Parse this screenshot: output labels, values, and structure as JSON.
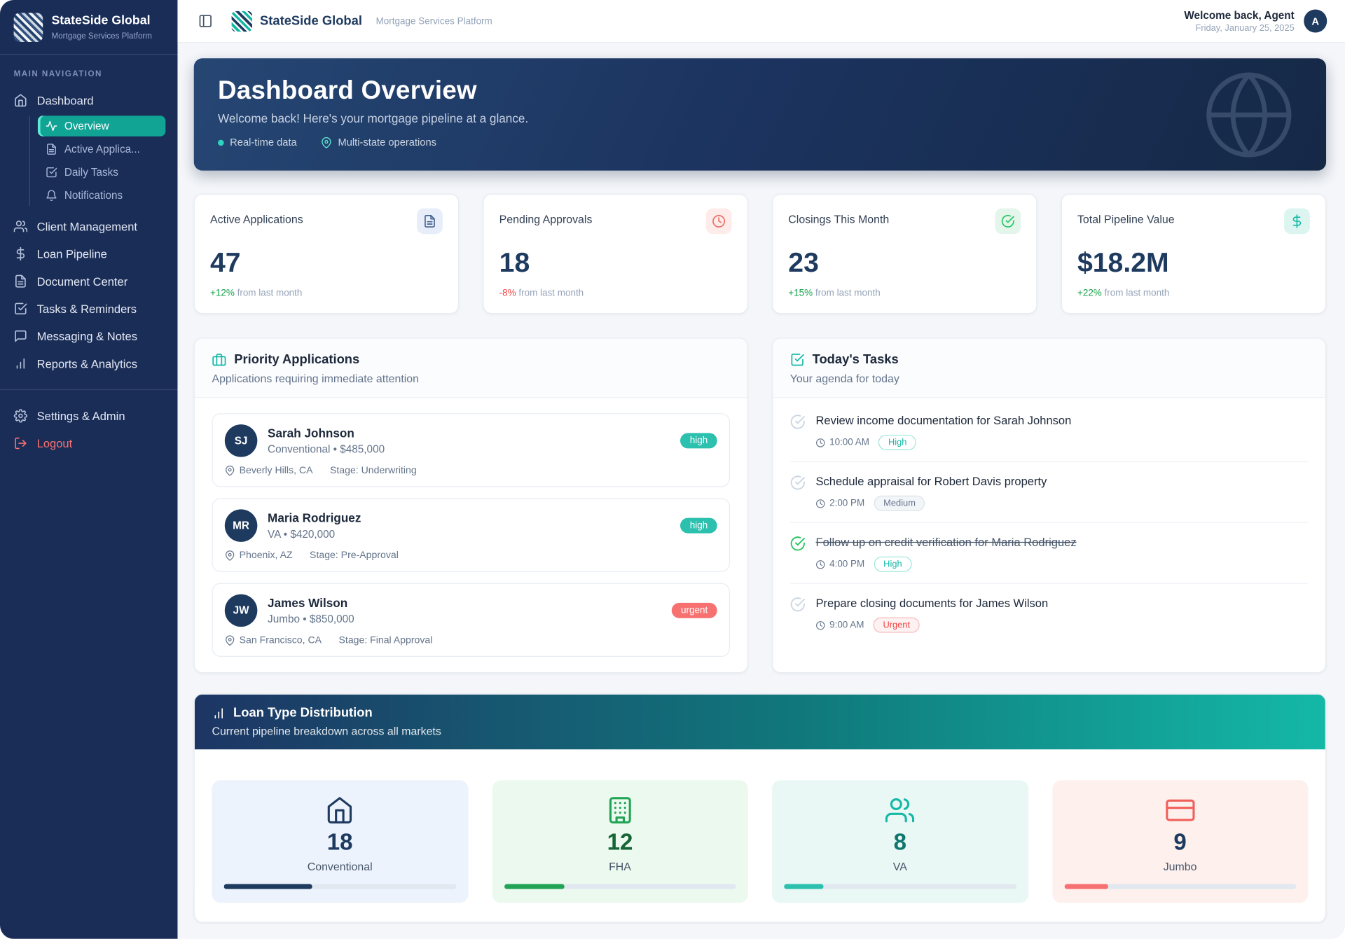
{
  "sidebar": {
    "title": "StateSide Global",
    "subtitle": "Mortgage Services Platform",
    "section": "MAIN NAVIGATION",
    "dashboard": "Dashboard",
    "sub_items": [
      {
        "label": "Overview"
      },
      {
        "label": "Active Applica..."
      },
      {
        "label": "Daily Tasks"
      },
      {
        "label": "Notifications"
      }
    ],
    "items": [
      {
        "label": "Client Management"
      },
      {
        "label": "Loan Pipeline"
      },
      {
        "label": "Document Center"
      },
      {
        "label": "Tasks & Reminders"
      },
      {
        "label": "Messaging & Notes"
      },
      {
        "label": "Reports & Analytics"
      }
    ],
    "settings": "Settings & Admin",
    "logout": "Logout"
  },
  "header": {
    "brand": "StateSide Global",
    "brand_subtitle": "Mortgage Services Platform",
    "welcome": "Welcome back, Agent",
    "date": "Friday, January 25, 2025",
    "avatar": "A"
  },
  "hero": {
    "title": "Dashboard Overview",
    "subtitle": "Welcome back! Here's your mortgage pipeline at a glance.",
    "tag_realtime": "Real-time data",
    "tag_multistate": "Multi-state operations"
  },
  "stats": [
    {
      "label": "Active Applications",
      "value": "47",
      "change": "+12%",
      "suffix": "from last month"
    },
    {
      "label": "Pending Approvals",
      "value": "18",
      "change": "-8%",
      "suffix": "from last month"
    },
    {
      "label": "Closings This Month",
      "value": "23",
      "change": "+15%",
      "suffix": "from last month"
    },
    {
      "label": "Total Pipeline Value",
      "value": "$18.2M",
      "change": "+22%",
      "suffix": "from last month"
    }
  ],
  "priority": {
    "title": "Priority Applications",
    "subtitle": "Applications requiring immediate attention",
    "items": [
      {
        "initials": "SJ",
        "name": "Sarah Johnson",
        "detail": "Conventional • $485,000",
        "location": "Beverly Hills, CA",
        "stage": "Stage: Underwriting",
        "badge": "high"
      },
      {
        "initials": "MR",
        "name": "Maria Rodriguez",
        "detail": "VA • $420,000",
        "location": "Phoenix, AZ",
        "stage": "Stage: Pre-Approval",
        "badge": "high"
      },
      {
        "initials": "JW",
        "name": "James Wilson",
        "detail": "Jumbo • $850,000",
        "location": "San Francisco, CA",
        "stage": "Stage: Final Approval",
        "badge": "urgent"
      }
    ]
  },
  "tasks": {
    "title": "Today's Tasks",
    "subtitle": "Your agenda for today",
    "items": [
      {
        "text": "Review income documentation for Sarah Johnson",
        "time": "10:00 AM",
        "badge": "High",
        "done": false
      },
      {
        "text": "Schedule appraisal for Robert Davis property",
        "time": "2:00 PM",
        "badge": "Medium",
        "done": false
      },
      {
        "text": "Follow up on credit verification for Maria Rodriguez",
        "time": "4:00 PM",
        "badge": "High",
        "done": true
      },
      {
        "text": "Prepare closing documents for James Wilson",
        "time": "9:00 AM",
        "badge": "Urgent",
        "done": false
      }
    ]
  },
  "loans": {
    "title": "Loan Type Distribution",
    "subtitle": "Current pipeline breakdown across all markets",
    "types": [
      {
        "label": "Conventional",
        "value": "18",
        "pct": 38
      },
      {
        "label": "FHA",
        "value": "12",
        "pct": 26
      },
      {
        "label": "VA",
        "value": "8",
        "pct": 17
      },
      {
        "label": "Jumbo",
        "value": "9",
        "pct": 19
      }
    ]
  },
  "colors": {
    "accent_teal": "#14b8a6",
    "navy": "#1e3a5f",
    "urgent_red": "#f87171",
    "success_green": "#16a34a",
    "pending_red": "#ef4444"
  }
}
